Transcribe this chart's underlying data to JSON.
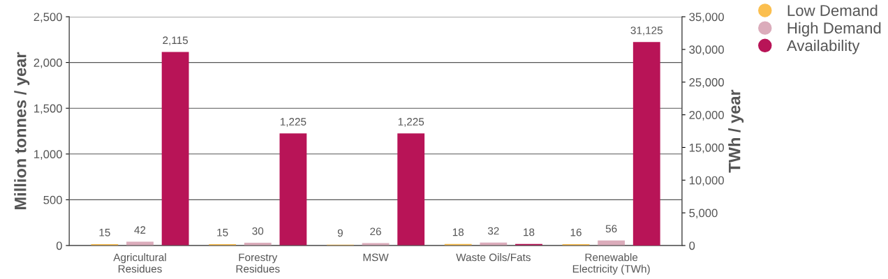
{
  "chart_data": {
    "type": "bar",
    "categories": [
      "Agricultural\nResidues",
      "Forestry\nResidues",
      "MSW",
      "Waste Oils/Fats",
      "Renewable\nElectricity (TWh)"
    ],
    "series": [
      {
        "name": "Low Demand",
        "color": "#fbbf4f",
        "values": [
          15,
          15,
          9,
          18,
          16
        ],
        "value_labels": [
          "15",
          "15",
          "9",
          "18",
          "16"
        ]
      },
      {
        "name": "High Demand",
        "color": "#dbacbb",
        "values": [
          42,
          30,
          26,
          32,
          56
        ],
        "value_labels": [
          "42",
          "30",
          "26",
          "32",
          "56"
        ]
      },
      {
        "name": "Availability",
        "color": "#b81457",
        "values": [
          2115,
          1225,
          1225,
          18,
          null
        ],
        "value_labels": [
          "2,115",
          "1,225",
          "1,225",
          "18",
          null
        ]
      },
      {
        "color": "#b81457",
        "axis": "y2",
        "values": [
          null,
          null,
          null,
          null,
          31125
        ],
        "value_labels": [
          null,
          null,
          null,
          null,
          "31,125"
        ]
      }
    ],
    "ylabel": "Million tonnes / year",
    "y2label": "TWh / year",
    "ylim": [
      0,
      2500
    ],
    "yticks": [
      {
        "value": 0,
        "label": "0"
      },
      {
        "value": 500,
        "label": "500"
      },
      {
        "value": 1000,
        "label": "1,000"
      },
      {
        "value": 1500,
        "label": "1,500"
      },
      {
        "value": 2000,
        "label": "2,000"
      },
      {
        "value": 2500,
        "label": "2,500"
      }
    ],
    "y2lim": [
      0,
      35000
    ],
    "y2ticks": [
      {
        "value": 0,
        "label": "0"
      },
      {
        "value": 5000,
        "label": "5,000"
      },
      {
        "value": 10000,
        "label": "10,000"
      },
      {
        "value": 15000,
        "label": "15,000"
      },
      {
        "value": 20000,
        "label": "20,000"
      },
      {
        "value": 25000,
        "label": "25,000"
      },
      {
        "value": 30000,
        "label": "30,000"
      },
      {
        "value": 35000,
        "label": "35,000"
      }
    ],
    "grid": "y",
    "legend": "top right",
    "marker": "circle"
  }
}
